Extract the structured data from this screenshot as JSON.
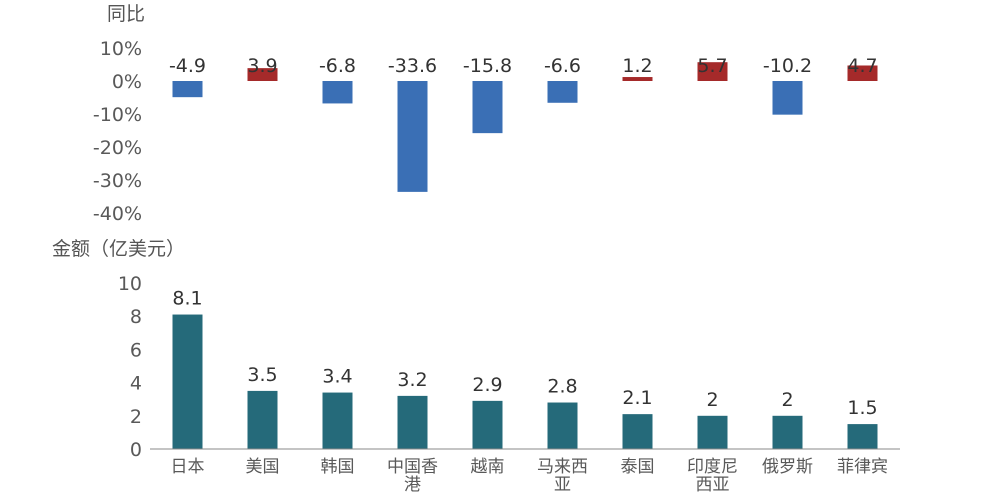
{
  "chart_data": [
    {
      "type": "bar",
      "title": "",
      "ylabel": "同比",
      "categories": [
        "日本",
        "美国",
        "韩国",
        "中国香港",
        "越南",
        "马来西亚",
        "泰国",
        "印度尼西亚",
        "俄罗斯",
        "菲律宾"
      ],
      "values": [
        -4.9,
        3.9,
        -6.8,
        -33.6,
        -15.8,
        -6.6,
        1.2,
        5.7,
        -10.2,
        4.7
      ],
      "y_ticks": [
        "10%",
        "0%",
        "-10%",
        "-20%",
        "-30%",
        "-40%"
      ],
      "ylim": [
        -40,
        10
      ],
      "colors": {
        "positive": "#A52A2A",
        "negative": "#3A6FB5"
      },
      "grid": false
    },
    {
      "type": "bar",
      "title": "",
      "ylabel": "金额（亿美元）",
      "categories": [
        "日本",
        "美国",
        "韩国",
        "中国香港",
        "越南",
        "马来西亚",
        "泰国",
        "印度尼西亚",
        "俄罗斯",
        "菲律宾"
      ],
      "values": [
        8.1,
        3.5,
        3.4,
        3.2,
        2.9,
        2.8,
        2.1,
        2,
        2,
        1.5
      ],
      "y_ticks": [
        "10",
        "8",
        "6",
        "4",
        "2",
        "0"
      ],
      "ylim": [
        0,
        10
      ],
      "colors": {
        "bar": "#256A7A",
        "axis": "#888888"
      },
      "grid": false
    }
  ]
}
